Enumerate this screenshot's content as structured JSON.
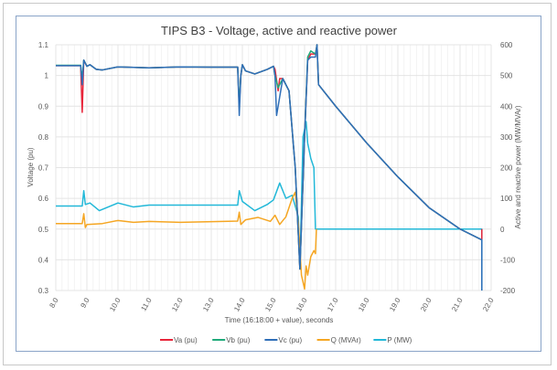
{
  "chart_data": {
    "type": "line",
    "title": "TIPS B3 - Voltage, active and reactive power",
    "xlabel": "Time (16:18:00 + value), seconds",
    "ylabel": "Voltage (pu)",
    "y2label": "Active and reactive power (MW/MVAr)",
    "xlim": [
      8,
      22
    ],
    "ylim": [
      0.3,
      1.1
    ],
    "y2lim": [
      -200,
      600
    ],
    "xticks": [
      "8.0",
      "9.0",
      "10.0",
      "11.0",
      "12.0",
      "13.0",
      "14.0",
      "15.0",
      "16.0",
      "17.0",
      "18.0",
      "19.0",
      "20.0",
      "21.0",
      "22.0"
    ],
    "yticks": [
      "0.3",
      "0.4",
      "0.5",
      "0.6",
      "0.7",
      "0.8",
      "0.9",
      "1",
      "1.1"
    ],
    "y2ticks": [
      "-200",
      "-100",
      "0",
      "100",
      "200",
      "300",
      "400",
      "500",
      "600"
    ],
    "grid": true,
    "legend": "bottom",
    "series": [
      {
        "name": "Va (pu)",
        "axis": "left",
        "color": "#e8253a",
        "points": [
          [
            8,
            1.032
          ],
          [
            8.8,
            1.032
          ],
          [
            8.85,
            0.88
          ],
          [
            8.9,
            1.05
          ],
          [
            9.0,
            1.03
          ],
          [
            9.1,
            1.035
          ],
          [
            9.3,
            1.02
          ],
          [
            9.5,
            1.018
          ],
          [
            10,
            1.028
          ],
          [
            11,
            1.025
          ],
          [
            12,
            1.028
          ],
          [
            13,
            1.027
          ],
          [
            13.85,
            1.027
          ],
          [
            13.9,
            0.9
          ],
          [
            13.95,
            1.0
          ],
          [
            14.0,
            1.035
          ],
          [
            14.1,
            1.015
          ],
          [
            14.4,
            1.005
          ],
          [
            14.8,
            1.02
          ],
          [
            15.0,
            1.03
          ],
          [
            15.05,
            1.02
          ],
          [
            15.15,
            0.95
          ],
          [
            15.2,
            0.99
          ],
          [
            15.3,
            0.99
          ],
          [
            15.5,
            0.95
          ],
          [
            15.7,
            0.7
          ],
          [
            15.85,
            0.37
          ],
          [
            16.0,
            0.8
          ],
          [
            16.1,
            1.05
          ],
          [
            16.2,
            1.07
          ],
          [
            16.35,
            1.07
          ],
          [
            16.4,
            1.1
          ],
          [
            16.45,
            0.97
          ],
          [
            17,
            0.9
          ],
          [
            18,
            0.78
          ],
          [
            19,
            0.67
          ],
          [
            20,
            0.57
          ],
          [
            21,
            0.5
          ],
          [
            21.7,
            0.465
          ],
          [
            21.7,
            0.5
          ]
        ]
      },
      {
        "name": "Vb (pu)",
        "axis": "left",
        "color": "#1faa7a",
        "points": [
          [
            8,
            1.033
          ],
          [
            8.8,
            1.033
          ],
          [
            8.85,
            0.99
          ],
          [
            8.9,
            1.05
          ],
          [
            9.0,
            1.03
          ],
          [
            9.1,
            1.035
          ],
          [
            9.3,
            1.02
          ],
          [
            9.5,
            1.018
          ],
          [
            10,
            1.028
          ],
          [
            11,
            1.025
          ],
          [
            12,
            1.028
          ],
          [
            13,
            1.027
          ],
          [
            13.85,
            1.027
          ],
          [
            13.9,
            0.9
          ],
          [
            13.95,
            1.0
          ],
          [
            14.0,
            1.035
          ],
          [
            14.1,
            1.015
          ],
          [
            14.4,
            1.005
          ],
          [
            14.8,
            1.02
          ],
          [
            15.0,
            1.03
          ],
          [
            15.05,
            1.0
          ],
          [
            15.15,
            0.96
          ],
          [
            15.2,
            0.97
          ],
          [
            15.3,
            0.99
          ],
          [
            15.5,
            0.95
          ],
          [
            15.7,
            0.7
          ],
          [
            15.85,
            0.37
          ],
          [
            16.0,
            0.8
          ],
          [
            16.1,
            1.06
          ],
          [
            16.2,
            1.08
          ],
          [
            16.35,
            1.07
          ],
          [
            16.4,
            1.1
          ],
          [
            16.45,
            0.97
          ],
          [
            17,
            0.9
          ],
          [
            18,
            0.78
          ],
          [
            19,
            0.67
          ],
          [
            20,
            0.57
          ],
          [
            21,
            0.5
          ],
          [
            21.7,
            0.465
          ]
        ]
      },
      {
        "name": "Vc (pu)",
        "axis": "left",
        "color": "#2f6fb8",
        "points": [
          [
            8,
            1.032
          ],
          [
            8.8,
            1.032
          ],
          [
            8.85,
            0.97
          ],
          [
            8.9,
            1.05
          ],
          [
            9.0,
            1.03
          ],
          [
            9.1,
            1.035
          ],
          [
            9.3,
            1.02
          ],
          [
            9.5,
            1.018
          ],
          [
            10,
            1.028
          ],
          [
            11,
            1.025
          ],
          [
            12,
            1.028
          ],
          [
            13,
            1.027
          ],
          [
            13.85,
            1.027
          ],
          [
            13.9,
            0.87
          ],
          [
            13.95,
            1.0
          ],
          [
            14.0,
            1.035
          ],
          [
            14.1,
            1.015
          ],
          [
            14.4,
            1.005
          ],
          [
            14.8,
            1.02
          ],
          [
            15.0,
            1.03
          ],
          [
            15.05,
            1.0
          ],
          [
            15.1,
            0.87
          ],
          [
            15.2,
            0.93
          ],
          [
            15.3,
            0.99
          ],
          [
            15.5,
            0.95
          ],
          [
            15.7,
            0.7
          ],
          [
            15.85,
            0.37
          ],
          [
            16.0,
            0.8
          ],
          [
            16.1,
            1.05
          ],
          [
            16.2,
            1.06
          ],
          [
            16.35,
            1.06
          ],
          [
            16.4,
            1.1
          ],
          [
            16.45,
            0.97
          ],
          [
            17,
            0.9
          ],
          [
            18,
            0.78
          ],
          [
            19,
            0.67
          ],
          [
            20,
            0.57
          ],
          [
            21,
            0.5
          ],
          [
            21.7,
            0.465
          ],
          [
            21.7,
            0.3
          ]
        ]
      },
      {
        "name": "Q (MVAr)",
        "axis": "right",
        "color": "#f5a623",
        "points": [
          [
            8,
            18
          ],
          [
            8.85,
            18
          ],
          [
            8.9,
            50
          ],
          [
            8.95,
            5
          ],
          [
            9.0,
            15
          ],
          [
            9.5,
            18
          ],
          [
            10,
            28
          ],
          [
            10.5,
            22
          ],
          [
            11,
            25
          ],
          [
            12,
            22
          ],
          [
            13.85,
            26
          ],
          [
            13.9,
            55
          ],
          [
            13.95,
            15
          ],
          [
            14.1,
            30
          ],
          [
            14.5,
            38
          ],
          [
            14.9,
            25
          ],
          [
            15.05,
            45
          ],
          [
            15.2,
            15
          ],
          [
            15.4,
            40
          ],
          [
            15.6,
            100
          ],
          [
            15.7,
            120
          ],
          [
            15.8,
            20
          ],
          [
            15.9,
            -150
          ],
          [
            16.0,
            -195
          ],
          [
            16.05,
            -120
          ],
          [
            16.1,
            -150
          ],
          [
            16.2,
            -90
          ],
          [
            16.3,
            -70
          ],
          [
            16.35,
            -80
          ],
          [
            16.38,
            0
          ]
        ]
      },
      {
        "name": "P (MW)",
        "axis": "right",
        "color": "#22b8d8",
        "points": [
          [
            8,
            75
          ],
          [
            8.85,
            75
          ],
          [
            8.9,
            125
          ],
          [
            8.95,
            80
          ],
          [
            9.1,
            85
          ],
          [
            9.4,
            60
          ],
          [
            10,
            85
          ],
          [
            10.5,
            72
          ],
          [
            11,
            78
          ],
          [
            13.85,
            78
          ],
          [
            13.9,
            125
          ],
          [
            14.0,
            90
          ],
          [
            14.4,
            60
          ],
          [
            14.8,
            80
          ],
          [
            15.0,
            95
          ],
          [
            15.2,
            150
          ],
          [
            15.4,
            100
          ],
          [
            15.6,
            110
          ],
          [
            15.8,
            40
          ],
          [
            15.85,
            -130
          ],
          [
            15.95,
            300
          ],
          [
            16.05,
            350
          ],
          [
            16.1,
            280
          ],
          [
            16.2,
            230
          ],
          [
            16.3,
            200
          ],
          [
            16.35,
            0
          ],
          [
            21.7,
            0
          ],
          [
            21.7,
            -200
          ]
        ]
      }
    ]
  }
}
